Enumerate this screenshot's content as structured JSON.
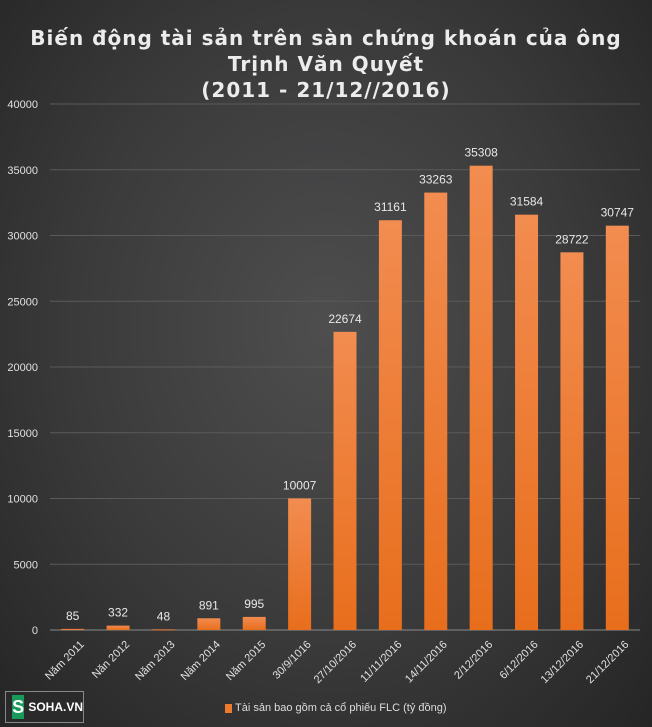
{
  "chart_data": {
    "type": "bar",
    "title_lines": [
      "Biến động tài sản trên sàn chứng khoán của ông",
      "Trịnh Văn Quyết",
      "(2011 - 21/12//2016)"
    ],
    "categories": [
      "Năm 2011",
      "Năn 2012",
      "Năm 2013",
      "Năm 2014",
      "Năm 2015",
      "30/9/1016",
      "27/10/2016",
      "11/11/2016",
      "14/11/2016",
      "2/12/2016",
      "6/12/2016",
      "13/12/2016",
      "21/12/2016"
    ],
    "values": [
      85,
      332,
      48,
      891,
      995,
      10007,
      22674,
      31161,
      33263,
      35308,
      31584,
      28722,
      30747
    ],
    "ylim": [
      0,
      40000
    ],
    "yticks": [
      0,
      5000,
      10000,
      15000,
      20000,
      25000,
      30000,
      35000,
      40000
    ],
    "legend": "Tài sản bao gồm cả cổ phiếu FLC (tỷ đồng)",
    "legend_position": "bottom",
    "grid": true,
    "bar_color": "#ee7a30"
  },
  "logo": {
    "letter": "S",
    "text": "SOHA.VN"
  }
}
